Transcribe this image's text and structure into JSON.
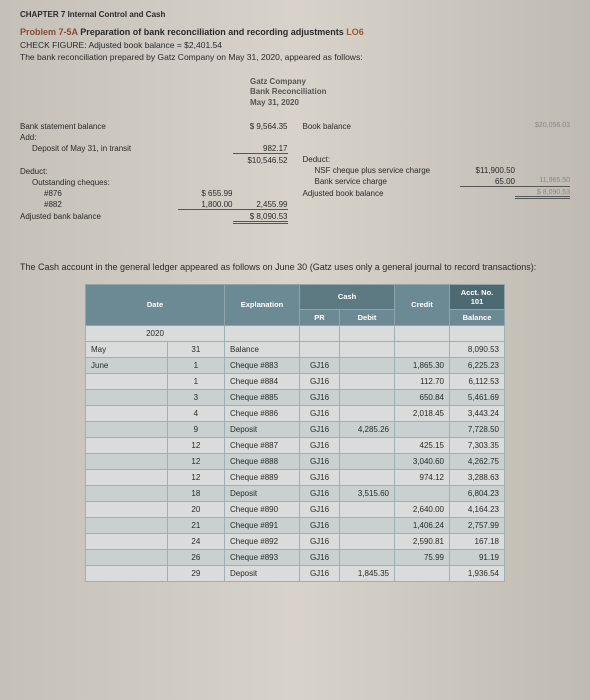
{
  "chapter": "CHAPTER 7  Internal Control and Cash",
  "problem": {
    "code": "Problem 7-5A",
    "title": "Preparation of bank reconciliation and recording adjustments",
    "lo": "LO6"
  },
  "check": "CHECK FIGURE: Adjusted book balance = $2,401.54",
  "intro": "The bank reconciliation prepared by Gatz Company on May 31, 2020, appeared as follows:",
  "recon": {
    "company": "Gatz Company",
    "title": "Bank Reconciliation",
    "date": "May 31, 2020",
    "left": {
      "bank_stmt": "Bank statement balance",
      "bank_stmt_val": "$ 9,564.35",
      "add": "Add:",
      "deposit": "Deposit of May 31, in transit",
      "deposit_val": "982.17",
      "subtotal": "$10,546.52",
      "deduct": "Deduct:",
      "outstanding": "Outstanding cheques:",
      "c876": "#876",
      "c876_val": "$ 655.99",
      "c882": "#882",
      "c882_val": "1,800.00",
      "out_total": "2,455.99",
      "adj": "Adjusted bank balance",
      "adj_val": "$ 8,090.53"
    },
    "right": {
      "book": "Book balance",
      "book_val": "$20,056.03",
      "deduct": "Deduct:",
      "nsf": "NSF cheque plus service charge",
      "nsf_val": "$11,900.50",
      "svc": "Bank service charge",
      "svc_val": "65.00",
      "svc_total": "11,965.50",
      "adj": "Adjusted book balance",
      "adj_val": "$ 8,090.53"
    }
  },
  "middle": "The Cash account in the general ledger appeared as follows on June 30 (Gatz uses only a general journal to record transactions):",
  "ledger": {
    "headers": {
      "cash": "Cash",
      "acct": "Acct. No. 101",
      "date": "Date",
      "exp": "Explanation",
      "pr": "PR",
      "debit": "Debit",
      "credit": "Credit",
      "balance": "Balance"
    },
    "year": "2020",
    "rows": [
      {
        "m": "May",
        "d": "31",
        "exp": "Balance",
        "pr": "",
        "debit": "",
        "credit": "",
        "bal": "8,090.53",
        "alt": false
      },
      {
        "m": "June",
        "d": "1",
        "exp": "Cheque #883",
        "pr": "GJ16",
        "debit": "",
        "credit": "1,865.30",
        "bal": "6,225.23",
        "alt": true
      },
      {
        "m": "",
        "d": "1",
        "exp": "Cheque #884",
        "pr": "GJ16",
        "debit": "",
        "credit": "112.70",
        "bal": "6,112.53",
        "alt": false
      },
      {
        "m": "",
        "d": "3",
        "exp": "Cheque #885",
        "pr": "GJ16",
        "debit": "",
        "credit": "650.84",
        "bal": "5,461.69",
        "alt": true
      },
      {
        "m": "",
        "d": "4",
        "exp": "Cheque #886",
        "pr": "GJ16",
        "debit": "",
        "credit": "2,018.45",
        "bal": "3,443.24",
        "alt": false
      },
      {
        "m": "",
        "d": "9",
        "exp": "Deposit",
        "pr": "GJ16",
        "debit": "4,285.26",
        "credit": "",
        "bal": "7,728.50",
        "alt": true
      },
      {
        "m": "",
        "d": "12",
        "exp": "Cheque #887",
        "pr": "GJ16",
        "debit": "",
        "credit": "425.15",
        "bal": "7,303.35",
        "alt": false
      },
      {
        "m": "",
        "d": "12",
        "exp": "Cheque #888",
        "pr": "GJ16",
        "debit": "",
        "credit": "3,040.60",
        "bal": "4,262.75",
        "alt": true
      },
      {
        "m": "",
        "d": "12",
        "exp": "Cheque #889",
        "pr": "GJ16",
        "debit": "",
        "credit": "974.12",
        "bal": "3,288.63",
        "alt": false
      },
      {
        "m": "",
        "d": "18",
        "exp": "Deposit",
        "pr": "GJ16",
        "debit": "3,515.60",
        "credit": "",
        "bal": "6,804.23",
        "alt": true
      },
      {
        "m": "",
        "d": "20",
        "exp": "Cheque #890",
        "pr": "GJ16",
        "debit": "",
        "credit": "2,640.00",
        "bal": "4,164.23",
        "alt": false
      },
      {
        "m": "",
        "d": "21",
        "exp": "Cheque #891",
        "pr": "GJ16",
        "debit": "",
        "credit": "1,406.24",
        "bal": "2,757.99",
        "alt": true
      },
      {
        "m": "",
        "d": "24",
        "exp": "Cheque #892",
        "pr": "GJ16",
        "debit": "",
        "credit": "2,590.81",
        "bal": "167.18",
        "alt": false
      },
      {
        "m": "",
        "d": "26",
        "exp": "Cheque #893",
        "pr": "GJ16",
        "debit": "",
        "credit": "75.99",
        "bal": "91.19",
        "alt": true
      },
      {
        "m": "",
        "d": "29",
        "exp": "Deposit",
        "pr": "GJ16",
        "debit": "1,845.35",
        "credit": "",
        "bal": "1,936.54",
        "alt": false
      }
    ]
  }
}
